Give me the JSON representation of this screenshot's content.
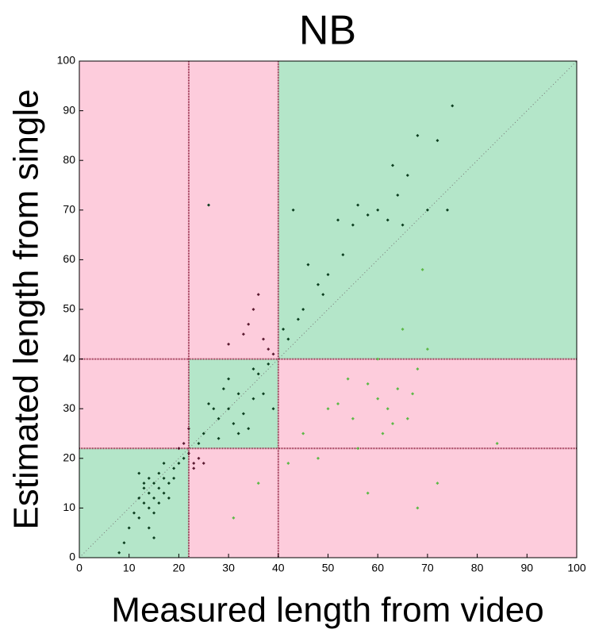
{
  "chart_data": {
    "type": "scatter",
    "title": "NB",
    "xlabel": "Measured length from video",
    "ylabel": "Estimated length from single",
    "xlim": [
      0,
      100
    ],
    "ylim": [
      0,
      100
    ],
    "xticks": [
      0,
      10,
      20,
      30,
      40,
      50,
      60,
      70,
      80,
      90,
      100
    ],
    "yticks": [
      0,
      10,
      20,
      30,
      40,
      50,
      60,
      70,
      80,
      90,
      100
    ],
    "class_boundaries": [
      22,
      40
    ],
    "match_color": "#b4e6c9",
    "mismatch_color": "#fdccdc",
    "boundary_color": "#8b1a3a",
    "series": [
      {
        "color": "#0b3d1e",
        "x": [
          12,
          13,
          14,
          15,
          16,
          17,
          13,
          14,
          15,
          16,
          18,
          11,
          12,
          19,
          20,
          14,
          15,
          16,
          17,
          13,
          10,
          9,
          8,
          18,
          19,
          21,
          12,
          14,
          17,
          15,
          25,
          28,
          30,
          32,
          35,
          27,
          29,
          31,
          33,
          36,
          38,
          24,
          26,
          30,
          34,
          37,
          32,
          28,
          35,
          39,
          41,
          45,
          48,
          50,
          53,
          55,
          58,
          60,
          62,
          64,
          66,
          68,
          70,
          75,
          74,
          72,
          65,
          63,
          56,
          52,
          43,
          46,
          42,
          44,
          49,
          26
        ],
        "values": [
          12,
          14,
          13,
          15,
          14,
          16,
          11,
          10,
          12,
          17,
          15,
          9,
          8,
          18,
          19,
          16,
          9,
          11,
          13,
          15,
          6,
          3,
          1,
          12,
          16,
          20,
          17,
          6,
          19,
          4,
          25,
          28,
          30,
          33,
          32,
          30,
          34,
          27,
          29,
          37,
          39,
          23,
          31,
          36,
          26,
          33,
          25,
          24,
          38,
          30,
          46,
          50,
          55,
          57,
          61,
          67,
          69,
          70,
          68,
          73,
          77,
          85,
          70,
          91,
          70,
          84,
          67,
          79,
          71,
          68,
          70,
          59,
          44,
          48,
          53,
          71
        ]
      },
      {
        "color": "#5a1a30",
        "x": [
          21,
          23,
          22,
          24,
          20,
          23,
          25,
          35,
          36,
          34,
          33,
          38,
          37,
          39,
          30,
          22
        ],
        "values": [
          23,
          19,
          21,
          20,
          22,
          18,
          19,
          50,
          53,
          47,
          45,
          42,
          44,
          41,
          43,
          26
        ]
      },
      {
        "color": "#5db847",
        "x": [
          45,
          50,
          55,
          58,
          60,
          62,
          64,
          66,
          68,
          56,
          60,
          65,
          70,
          48,
          42,
          36,
          31,
          58,
          68,
          72,
          84,
          69,
          63,
          52,
          54,
          61,
          67
        ],
        "values": [
          25,
          30,
          28,
          35,
          32,
          30,
          34,
          28,
          38,
          22,
          40,
          46,
          42,
          20,
          19,
          15,
          8,
          13,
          10,
          15,
          23,
          58,
          27,
          31,
          36,
          25,
          33
        ]
      }
    ]
  }
}
